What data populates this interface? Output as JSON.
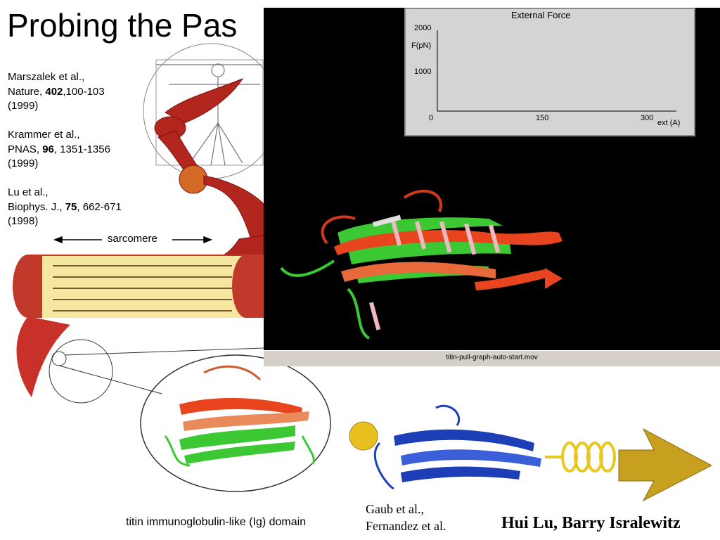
{
  "title": "Probing the Pas",
  "references": [
    {
      "l1": "Marszalek et al.,",
      "l2a": "Nature, ",
      "l2b": "402",
      "l2c": ",100-103",
      "l3": "(1999)"
    },
    {
      "l1": "Krammer et al.,",
      "l2a": "PNAS, ",
      "l2b": "96",
      "l2c": ", 1351-1356",
      "l3": "(1999)"
    },
    {
      "l1": "Lu et al.,",
      "l2a": "Biophys. J., ",
      "l2b": "75",
      "l2c": ", 662-671",
      "l3": "(1998)"
    }
  ],
  "sarcomere_label": "sarcomere",
  "graph": {
    "title": "External Force",
    "ylabel": "F(pN)",
    "xlabel": "ext (A)",
    "yticks": [
      "2000",
      "1000"
    ],
    "xticks": [
      "0",
      "150",
      "300"
    ]
  },
  "video_filename": "titin-pull-graph-auto-start.mov",
  "caption": "titin immunoglobulin-like (Ig) domain",
  "credits": {
    "line1": "Gaub et al.,",
    "line2": "Fernandez et al.",
    "authors": "Hui Lu, Barry Isralewitz"
  },
  "colors": {
    "muscle": "#b3261e",
    "sarcomere_bg": "#f5e7a0",
    "strand_red": "#e8441e",
    "strand_green": "#3cc832",
    "strand_blue": "#1c3fb8",
    "bead": "#e8c020",
    "arrow_gold": "#c8a020"
  }
}
